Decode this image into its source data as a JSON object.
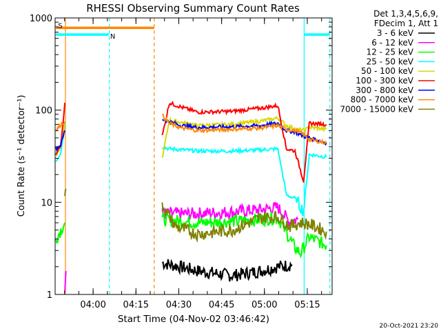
{
  "chart_data": {
    "type": "line",
    "title": "RHESSI Observing Summary Count Rates",
    "xlabel": "Start Time (04-Nov-02 03:46:42)",
    "ylabel": "Count Rate (s⁻¹ detector⁻¹)",
    "yscale": "log",
    "ylim": [
      1,
      1000
    ],
    "x_range_minutes": [
      0,
      97
    ],
    "x_ticks": [
      {
        "label": "04:00",
        "min": 13.3
      },
      {
        "label": "04:15",
        "min": 28.3
      },
      {
        "label": "04:30",
        "min": 43.3
      },
      {
        "label": "04:45",
        "min": 58.3
      },
      {
        "label": "05:00",
        "min": 73.3
      },
      {
        "label": "05:15",
        "min": 88.3
      }
    ],
    "y_ticks": [
      {
        "label": "1",
        "value": 1
      },
      {
        "label": "10",
        "value": 10
      },
      {
        "label": "100",
        "value": 100
      },
      {
        "label": "1000",
        "value": 1000
      }
    ],
    "legend": {
      "placement": "right",
      "header": [
        "Det 1,3,4,5,6,9,",
        "FDecim 1, Att 1"
      ],
      "entries": [
        {
          "label": "3 - 6 keV",
          "color": "#000000"
        },
        {
          "label": "6 - 12 keV",
          "color": "#ff00ff"
        },
        {
          "label": "12 - 25 keV",
          "color": "#00ff00"
        },
        {
          "label": "25 - 50 keV",
          "color": "#00ffff"
        },
        {
          "label": "50 - 100 keV",
          "color": "#d8d800"
        },
        {
          "label": "100 - 300 keV",
          "color": "#ff0000"
        },
        {
          "label": "300 - 800 keV",
          "color": "#0000ff"
        },
        {
          "label": "800 - 7000 keV",
          "color": "#ff8800"
        },
        {
          "label": "7000 - 15000 keV",
          "color": "#808000"
        }
      ]
    },
    "series": [
      {
        "name": "3 - 6 keV",
        "color": "#000000",
        "segments": [
          [
            [
              37.5,
              2.2
            ],
            [
              50,
              1.8
            ],
            [
              62,
              1.6
            ],
            [
              72,
              1.8
            ],
            [
              78,
              2.0
            ],
            [
              83,
              2.1
            ]
          ]
        ]
      },
      {
        "name": "6 - 12 keV",
        "color": "#ff00ff",
        "segments": [
          [
            [
              3.4,
              1.1
            ],
            [
              3.8,
              1.8
            ]
          ],
          [
            [
              37.5,
              7.5
            ],
            [
              48,
              7.5
            ],
            [
              60,
              7.8
            ],
            [
              72,
              8.3
            ],
            [
              78,
              8.8
            ],
            [
              82,
              6.2
            ],
            [
              85,
              6.5
            ]
          ]
        ]
      },
      {
        "name": "12 - 25 keV",
        "color": "#00ff00",
        "segments": [
          [
            [
              0.3,
              4.0
            ],
            [
              2,
              5.0
            ],
            [
              3.4,
              6.0
            ]
          ],
          [
            [
              37.5,
              6.5
            ],
            [
              50,
              6.0
            ],
            [
              62,
              6.2
            ],
            [
              72,
              6.5
            ],
            [
              78,
              6.8
            ],
            [
              84,
              3.2
            ],
            [
              86,
              2.8
            ],
            [
              89,
              4.2
            ],
            [
              95,
              3.4
            ]
          ]
        ]
      },
      {
        "name": "25 - 50 keV",
        "color": "#00ffff",
        "segments": [
          [
            [
              0.3,
              28
            ],
            [
              2,
              35
            ],
            [
              3.4,
              70
            ]
          ],
          [
            [
              37.5,
              40
            ],
            [
              40,
              38
            ],
            [
              50,
              36
            ],
            [
              62,
              36
            ],
            [
              72,
              37
            ],
            [
              78,
              38
            ],
            [
              81,
              12
            ],
            [
              84,
              11
            ],
            [
              87,
              8
            ],
            [
              89,
              33
            ],
            [
              95,
              31
            ]
          ]
        ]
      },
      {
        "name": "50 - 100 keV",
        "color": "#d8d800",
        "segments": [
          [
            [
              0.3,
              32
            ],
            [
              2,
              40
            ],
            [
              3.4,
              75
            ]
          ],
          [
            [
              37.5,
              30
            ],
            [
              40,
              78
            ],
            [
              50,
              68
            ],
            [
              62,
              70
            ],
            [
              72,
              76
            ],
            [
              78,
              82
            ],
            [
              81,
              68
            ],
            [
              84,
              62
            ],
            [
              87,
              60
            ],
            [
              89,
              65
            ],
            [
              95,
              62
            ]
          ]
        ]
      },
      {
        "name": "100 - 300 keV",
        "color": "#ff0000",
        "segments": [
          [
            [
              0.3,
              33
            ],
            [
              2,
              42
            ],
            [
              3.4,
              120
            ]
          ],
          [
            [
              37.5,
              52
            ],
            [
              40,
              120
            ],
            [
              44,
              108
            ],
            [
              50,
              95
            ],
            [
              62,
              97
            ],
            [
              72,
              105
            ],
            [
              78,
              112
            ],
            [
              81,
              38
            ],
            [
              84,
              36
            ],
            [
              87,
              17
            ],
            [
              89,
              72
            ],
            [
              95,
              70
            ]
          ]
        ]
      },
      {
        "name": "300 - 800 keV",
        "color": "#0000ff",
        "segments": [
          [
            [
              0.3,
              38
            ],
            [
              2,
              42
            ],
            [
              3.4,
              60
            ]
          ],
          [
            [
              37.5,
              80
            ],
            [
              40,
              75
            ],
            [
              44,
              68
            ],
            [
              50,
              65
            ],
            [
              62,
              66
            ],
            [
              72,
              68
            ],
            [
              78,
              72
            ],
            [
              81,
              60
            ],
            [
              84,
              58
            ],
            [
              87,
              52
            ],
            [
              89,
              50
            ],
            [
              95,
              44
            ]
          ]
        ]
      },
      {
        "name": "800 - 7000 keV",
        "color": "#ff8800",
        "segments": [
          [
            [
              0.3,
              60
            ],
            [
              2,
              70
            ],
            [
              3.4,
              75
            ]
          ],
          [
            [
              37.5,
              88
            ],
            [
              40,
              72
            ],
            [
              44,
              64
            ],
            [
              50,
              60
            ],
            [
              62,
              62
            ],
            [
              72,
              64
            ],
            [
              78,
              68
            ],
            [
              81,
              62
            ],
            [
              84,
              60
            ],
            [
              87,
              55
            ],
            [
              89,
              48
            ],
            [
              95,
              44
            ]
          ]
        ]
      },
      {
        "name": "7000 - 15000 keV",
        "color": "#808000",
        "segments": [
          [
            [
              3.4,
              12
            ],
            [
              3.8,
              14
            ]
          ],
          [
            [
              37.5,
              9.5
            ],
            [
              42,
              5.5
            ],
            [
              50,
              4.5
            ],
            [
              62,
              5.0
            ],
            [
              72,
              6.8
            ],
            [
              78,
              7.0
            ],
            [
              82,
              5.5
            ],
            [
              86,
              6.0
            ],
            [
              89,
              5.8
            ],
            [
              95,
              4.8
            ]
          ]
        ]
      }
    ],
    "flag_bars": [
      {
        "label": "S",
        "color": "#ff8800",
        "x_start": 0.3,
        "x_end": 34.7,
        "level": 780
      },
      {
        "label": "N",
        "color": "#00ffff",
        "x_start": 0.3,
        "x_end": 18.8,
        "level": 660
      },
      {
        "label": "",
        "color": "#00ffff",
        "x_start": 87.2,
        "x_end": 96.2,
        "level": 660
      }
    ],
    "vertical_lines": [
      {
        "min": 3.6,
        "color": "#ff8800",
        "style": "solid"
      },
      {
        "min": 19.0,
        "color": "#00ffff",
        "style": "dashed"
      },
      {
        "min": 34.7,
        "color": "#ff8800",
        "style": "dashed"
      },
      {
        "min": 87.2,
        "color": "#00ffff",
        "style": "solid"
      },
      {
        "min": 96.2,
        "color": "#00ffff",
        "style": "dashed"
      }
    ],
    "footer_date": "20-Oct-2021 23:20"
  }
}
